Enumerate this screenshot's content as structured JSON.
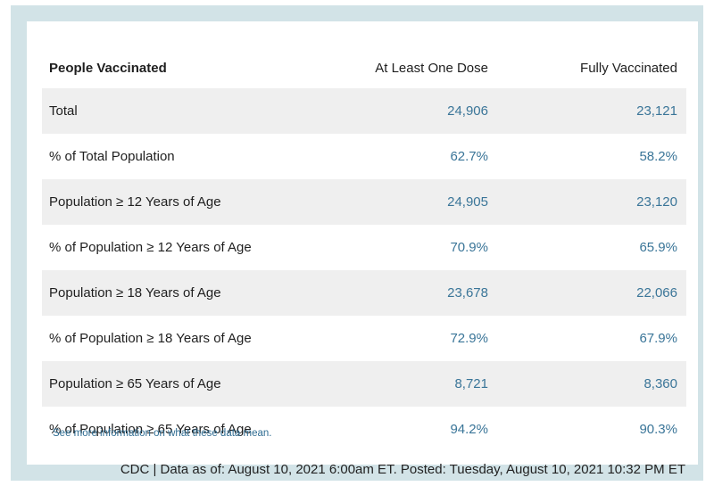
{
  "table": {
    "headers": [
      "People Vaccinated",
      "At Least One Dose",
      "Fully Vaccinated"
    ],
    "rows": [
      {
        "label": "Total",
        "one_dose": "24,906",
        "fully": "23,121"
      },
      {
        "label": "% of Total Population",
        "one_dose": "62.7%",
        "fully": "58.2%"
      },
      {
        "label": "Population ≥ 12 Years of Age",
        "one_dose": "24,905",
        "fully": "23,120"
      },
      {
        "label": "% of Population ≥ 12 Years of Age",
        "one_dose": "70.9%",
        "fully": "65.9%"
      },
      {
        "label": "Population ≥ 18 Years of Age",
        "one_dose": "23,678",
        "fully": "22,066"
      },
      {
        "label": "% of Population ≥ 18 Years of Age",
        "one_dose": "72.9%",
        "fully": "67.9%"
      },
      {
        "label": "Population ≥ 65 Years of Age",
        "one_dose": "8,721",
        "fully": "8,360"
      },
      {
        "label": "% of Population ≥ 65 Years of Age",
        "one_dose": "94.2%",
        "fully": "90.3%"
      }
    ]
  },
  "more_info_link": "See more information on what these data mean.",
  "footer": "CDC | Data as of: August 10, 2021 6:00am ET. Posted: Tuesday, August 10, 2021 10:32 PM ET",
  "colors": {
    "frame": "#d2e3e7",
    "row_shade": "#efefef",
    "value_text": "#3a7598",
    "link": "#2f6d93"
  }
}
